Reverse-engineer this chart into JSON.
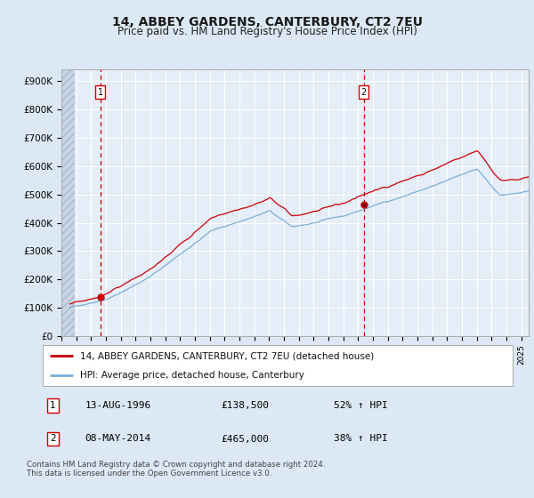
{
  "title": "14, ABBEY GARDENS, CANTERBURY, CT2 7EU",
  "subtitle": "Price paid vs. HM Land Registry's House Price Index (HPI)",
  "title_fontsize": 10,
  "subtitle_fontsize": 8.5,
  "ylabel_ticks": [
    "£0",
    "£100K",
    "£200K",
    "£300K",
    "£400K",
    "£500K",
    "£600K",
    "£700K",
    "£800K",
    "£900K"
  ],
  "ytick_values": [
    0,
    100000,
    200000,
    300000,
    400000,
    500000,
    600000,
    700000,
    800000,
    900000
  ],
  "ylim": [
    0,
    940000
  ],
  "xlim_start": 1994.0,
  "xlim_end": 2025.5,
  "background_color": "#dce8f5",
  "plot_bg_color": "#e4edf8",
  "grid_color": "#ffffff",
  "red_color": "#cc0000",
  "blue_color": "#7ab0d8",
  "transaction1_year": 1996.617,
  "transaction1_price": 138500,
  "transaction2_year": 2014.37,
  "transaction2_price": 465000,
  "legend_line1": "14, ABBEY GARDENS, CANTERBURY, CT2 7EU (detached house)",
  "legend_line2": "HPI: Average price, detached house, Canterbury",
  "table_row1_num": "1",
  "table_row1_date": "13-AUG-1996",
  "table_row1_price": "£138,500",
  "table_row1_hpi": "52% ↑ HPI",
  "table_row2_num": "2",
  "table_row2_date": "08-MAY-2014",
  "table_row2_price": "£465,000",
  "table_row2_hpi": "38% ↑ HPI",
  "footer": "Contains HM Land Registry data © Crown copyright and database right 2024.\nThis data is licensed under the Open Government Licence v3.0."
}
